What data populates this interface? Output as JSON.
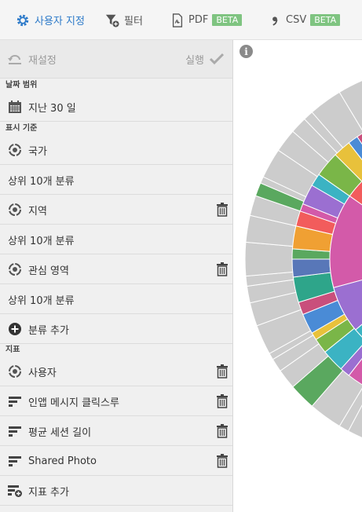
{
  "toolbar": {
    "customize_label": "사용자 지정",
    "filter_label": "필터",
    "pdf_label": "PDF",
    "pdf_badge": "BETA",
    "csv_label": "CSV",
    "csv_badge": "BETA",
    "icons": {
      "customize": "gear-icon",
      "filter": "filter-add-icon",
      "pdf": "pdf-file-icon",
      "csv": "csv-file-icon"
    }
  },
  "panel": {
    "reset_label": "재설정",
    "run_label": "실행",
    "date_range_header": "날짜 범위",
    "date_range_value": "지난 30 일",
    "breakdown_header": "표시 기준",
    "breakdowns": [
      {
        "label": "국가",
        "top": "상위 10개 분류"
      },
      {
        "label": "지역",
        "top": "상위 10개 분류"
      },
      {
        "label": "관심 영역",
        "top": "상위 10개 분류"
      }
    ],
    "add_breakdown_label": "분류 추가",
    "metrics_header": "지표",
    "metrics": [
      {
        "label": "사용자"
      },
      {
        "label": "인앱 메시지 클릭스루"
      },
      {
        "label": "평균 세션 길이"
      },
      {
        "label": "Shared Photo"
      }
    ],
    "add_metric_label": "지표 추가"
  },
  "chart_data": {
    "type": "sunburst",
    "info_symbol": "i",
    "colors": {
      "grey": "#cccccc",
      "inner_magenta": "#d35aa9",
      "red": "#f25c5c",
      "orange": "#f0a033",
      "blue": "#5877b8",
      "green": "#5aa85f"
    }
  }
}
